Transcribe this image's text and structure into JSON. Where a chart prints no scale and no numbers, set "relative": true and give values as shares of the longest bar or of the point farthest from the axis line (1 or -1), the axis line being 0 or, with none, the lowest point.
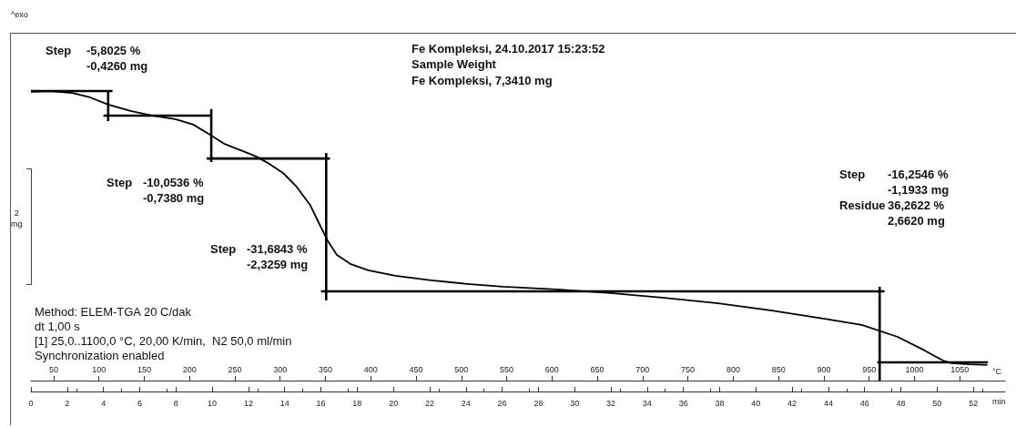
{
  "chart_data": {
    "type": "line",
    "relative": true,
    "marker": "none",
    "title": "Fe Kompleksi, 24.10.2017 15:23:52",
    "subtitle": "Sample Weight",
    "xlabel": "min",
    "x2label": "°C",
    "xlim": [
      0,
      53.75
    ],
    "xticks": [
      0,
      2,
      4,
      6,
      8,
      10,
      12,
      14,
      16,
      18,
      20,
      22,
      24,
      26,
      28,
      30,
      32,
      34,
      36,
      38,
      40,
      42,
      44,
      46,
      48,
      50,
      52
    ],
    "x2lim": [
      25,
      1100
    ],
    "x2ticks": [
      50,
      100,
      150,
      200,
      250,
      300,
      350,
      400,
      450,
      500,
      550,
      600,
      650,
      700,
      750,
      800,
      850,
      900,
      950,
      1000,
      1050
    ],
    "series": [
      {
        "color": "#000000",
        "x": [
          0,
          1.04,
          2.28,
          3.27,
          4.26,
          5.5,
          6.73,
          7.97,
          8.96,
          9.8,
          10.69,
          11.68,
          12.43,
          13.17,
          13.91,
          14.65,
          15.4,
          15.89,
          16.39,
          16.88,
          17.62,
          18.61,
          20.1,
          22.08,
          24.06,
          26.04,
          29.01,
          31.98,
          34.95,
          37.92,
          40.89,
          43.86,
          45.84,
          47.82,
          49.31,
          50.3,
          50.79,
          51.78,
          52.77
        ],
        "values": [
          0.997,
          1,
          0.993,
          0.978,
          0.953,
          0.931,
          0.915,
          0.903,
          0.884,
          0.852,
          0.817,
          0.793,
          0.774,
          0.748,
          0.717,
          0.67,
          0.607,
          0.544,
          0.481,
          0.434,
          0.403,
          0.381,
          0.362,
          0.346,
          0.334,
          0.324,
          0.315,
          0.302,
          0.286,
          0.267,
          0.242,
          0.213,
          0.192,
          0.151,
          0.104,
          0.07,
          0.06,
          0.056,
          0.054
        ]
      },
      {
        "color": "#000000",
        "x": [
          0,
          4.5,
          null,
          4.26,
          4.26,
          null,
          4.0,
          9.95,
          null,
          9.95,
          9.95,
          null,
          9.7,
          16.5,
          null,
          16.29,
          16.29,
          null,
          16.0,
          47.1,
          null,
          46.83,
          46.83,
          null,
          46.7,
          52.8
        ],
        "values": [
          1,
          1,
          null,
          1,
          0.896,
          null,
          0.915,
          0.915,
          null,
          0.938,
          0.755,
          null,
          0.767,
          0.767,
          null,
          0.786,
          0.277,
          null,
          0.308,
          0.308,
          null,
          0.324,
          0,
          null,
          0.063,
          0.063
        ]
      }
    ],
    "annotations": [
      "^exo",
      "Step",
      "-5,8025 %\n-0,4260 mg",
      "Step",
      "-10,0536 %\n-0,7380 mg",
      "Step",
      "-31,6843 %\n-2,3259 mg",
      "Step\n\nResidue",
      "-16,2546 %\n-1,1933 mg\n36,2622 %\n2,6620 mg",
      "Fe Kompleksi, 7,3410 mg",
      "2\nmg",
      "Method: ELEM-TGA 20 C/dak\ndt 1,00 s\n[1] 25,0..1100,0 °C, 20,00 K/min,  N2 50,0 ml/min\nSynchronization enabled"
    ]
  }
}
